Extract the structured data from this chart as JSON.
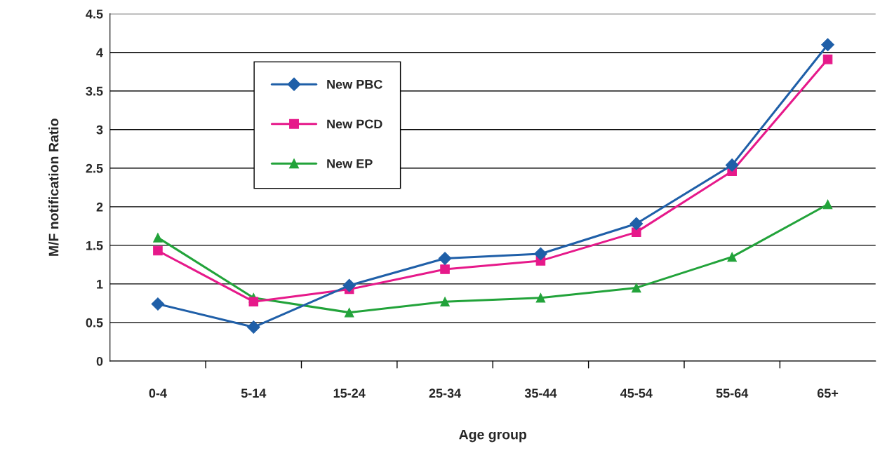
{
  "chart_data": {
    "type": "line",
    "xlabel": "Age group",
    "ylabel": "M/F notification Ratio",
    "categories": [
      "0-4",
      "5-14",
      "15-24",
      "25-34",
      "35-44",
      "45-54",
      "55-64",
      "65+"
    ],
    "series": [
      {
        "name": "New PBC",
        "color": "#1f5fa8",
        "marker": "diamond",
        "values": [
          0.74,
          0.44,
          0.98,
          1.33,
          1.39,
          1.78,
          2.54,
          4.1
        ]
      },
      {
        "name": "New PCD",
        "color": "#e6198a",
        "marker": "square",
        "values": [
          1.43,
          0.77,
          0.93,
          1.19,
          1.3,
          1.67,
          2.46,
          3.91
        ]
      },
      {
        "name": "New EP",
        "color": "#22a33a",
        "marker": "triangle",
        "values": [
          1.6,
          0.82,
          0.63,
          0.77,
          0.82,
          0.95,
          1.35,
          2.03
        ]
      }
    ],
    "ylim": [
      0,
      4.5
    ],
    "yticks": [
      0,
      0.5,
      1,
      1.5,
      2,
      2.5,
      3,
      3.5,
      4,
      4.5
    ],
    "grid": "y",
    "legend": "top left",
    "line_style": "solid"
  }
}
